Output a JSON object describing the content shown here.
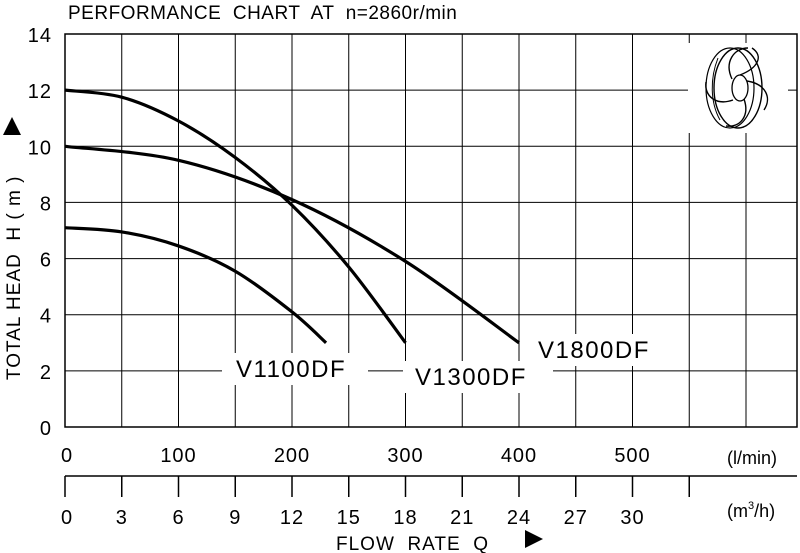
{
  "chart_data": {
    "type": "line",
    "title": "PERFORMANCE  CHART  AT  n=2860r/min",
    "ylabel": "TOTAL HEAD  H ( m )",
    "xlabel": "FLOW  RATE  Q",
    "x_unit_primary": "(l/min)",
    "x_unit_secondary_prefix": "(m",
    "x_unit_secondary_sup": "3",
    "x_unit_secondary_suffix": "/h)",
    "ylim": [
      0,
      14
    ],
    "xlim": [
      0,
      650
    ],
    "grid": true,
    "y_ticks": [
      "0",
      "2",
      "4",
      "6",
      "8",
      "10",
      "12",
      "14"
    ],
    "x_ticks_primary": [
      "0",
      "100",
      "200",
      "300",
      "400",
      "500"
    ],
    "x_ticks_secondary": [
      "0",
      "3",
      "6",
      "9",
      "12",
      "15",
      "18",
      "21",
      "24",
      "27",
      "30"
    ],
    "series": [
      {
        "name": "V1100DF",
        "x": [
          0,
          50,
          100,
          150,
          200,
          230
        ],
        "y": [
          7.1,
          6.95,
          6.45,
          5.55,
          4.1,
          3.0
        ]
      },
      {
        "name": "V1300DF",
        "x": [
          0,
          50,
          100,
          150,
          200,
          250,
          300
        ],
        "y": [
          12.0,
          11.75,
          10.9,
          9.6,
          7.9,
          5.7,
          3.0
        ]
      },
      {
        "name": "V1800DF",
        "x": [
          0,
          100,
          200,
          300,
          400
        ],
        "y": [
          10.0,
          9.5,
          8.1,
          5.9,
          3.0
        ]
      }
    ]
  },
  "icon": "impeller-icon"
}
